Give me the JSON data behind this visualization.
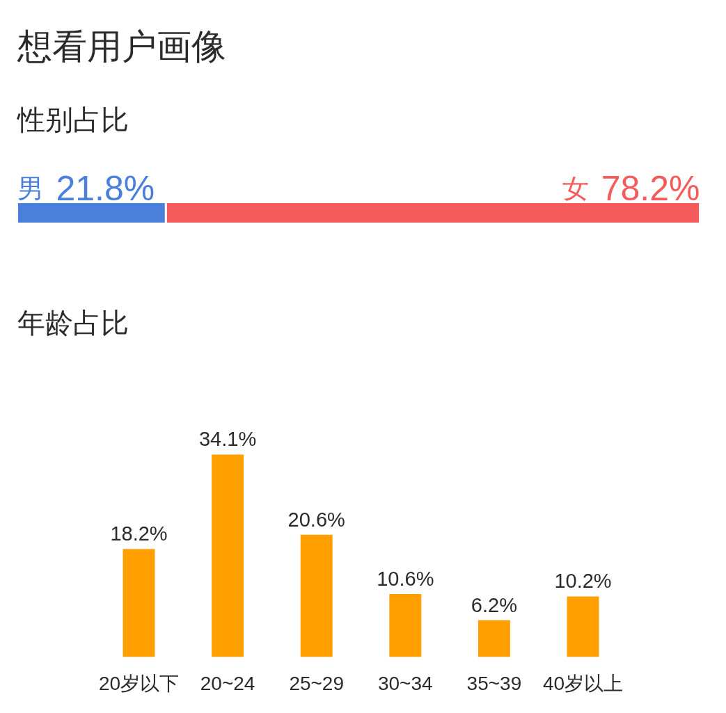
{
  "chart_data": [
    {
      "type": "bar",
      "title": "想看用户画像",
      "subtitle": "性别占比",
      "orientation": "horizontal",
      "stacked": true,
      "categories": [
        null
      ],
      "tick_labels": false,
      "series": [
        {
          "name": "男",
          "color": "#4a7fdb",
          "values": [
            21.8
          ],
          "value_labels": [
            "21.8%"
          ]
        },
        {
          "name": "女",
          "color": "#f65b5b",
          "values": [
            78.2
          ],
          "value_labels": [
            "78.2%"
          ]
        }
      ]
    },
    {
      "type": "bar",
      "title": "年龄占比",
      "categories": [
        "20岁以下",
        "20~24",
        "25~29",
        "30~34",
        "35~39",
        "40岁以上"
      ],
      "values": [
        18.2,
        34.1,
        20.6,
        10.6,
        6.2,
        10.2
      ],
      "color": "#ff9f00",
      "value_labels": [
        "18.2%",
        "34.1%",
        "20.6%",
        "10.6%",
        "6.2%",
        "10.2%"
      ],
      "tick_labels": "x"
    }
  ]
}
